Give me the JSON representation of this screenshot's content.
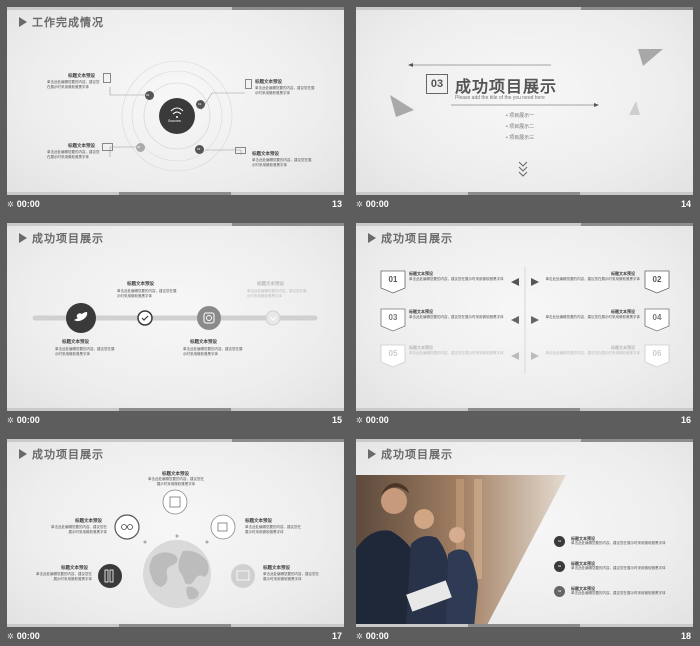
{
  "slides": [
    {
      "number": "13",
      "time": "00:00",
      "title": "工作完成情况",
      "center_label": "Sources",
      "items": [
        {
          "num": "02",
          "heading": "标题文本预设",
          "text": "单击此处编辑您要的内容，建议您在展示时采用微软雅黑字体"
        },
        {
          "num": "01",
          "heading": "标题文本预设",
          "text": "单击此处编辑您要的内容，建议您在展示时采用微软雅黑字体"
        },
        {
          "num": "04",
          "heading": "标题文本预设",
          "text": "单击此处编辑您要的内容，建议您在展示时采用微软雅黑字体"
        },
        {
          "num": "03",
          "heading": "标题文本预设",
          "text": "单击此处编辑您要的内容，建议您在展示时采用微软雅黑字体"
        }
      ]
    },
    {
      "number": "14",
      "time": "00:00",
      "section_num": "03",
      "title": "成功项目展示",
      "subtitle": "Please add the title of the you need here",
      "bullets": [
        "项目展示一",
        "项目展示二",
        "项目展示三"
      ]
    },
    {
      "number": "15",
      "time": "00:00",
      "title": "成功项目展示",
      "items": [
        {
          "heading": "标题文本预设",
          "text": "单击此处编辑您要的内容，建议您在展示时采用微软雅黑字体"
        },
        {
          "heading": "标题文本预设",
          "text": "单击此处编辑您要的内容，建议您在展示时采用微软雅黑字体"
        },
        {
          "heading": "标题文本预设",
          "text": "单击此处编辑您要的内容，建议您在展示时采用微软雅黑字体"
        },
        {
          "heading": "标题文本预设",
          "text": "单击此处编辑您要的内容，建议您在展示时采用微软雅黑字体"
        }
      ]
    },
    {
      "number": "16",
      "time": "00:00",
      "title": "成功项目展示",
      "items": [
        {
          "num": "01",
          "heading": "标题文本预设",
          "text": "单击此处编辑您要的内容，建议您在展示时采用微软雅黑字体"
        },
        {
          "num": "02",
          "heading": "标题文本预设",
          "text": "单击此处编辑您要的内容，建议您在展示时采用微软雅黑字体"
        },
        {
          "num": "03",
          "heading": "标题文本预设",
          "text": "单击此处编辑您要的内容，建议您在展示时采用微软雅黑字体"
        },
        {
          "num": "04",
          "heading": "标题文本预设",
          "text": "单击此处编辑您要的内容，建议您在展示时采用微软雅黑字体"
        },
        {
          "num": "05",
          "heading": "标题文本预设",
          "text": "单击此处编辑您要的内容，建议您在展示时采用微软雅黑字体"
        },
        {
          "num": "06",
          "heading": "标题文本预设",
          "text": "单击此处编辑您要的内容，建议您在展示时采用微软雅黑字体"
        }
      ]
    },
    {
      "number": "17",
      "time": "00:00",
      "title": "成功项目展示",
      "items": [
        {
          "heading": "标题文本预设",
          "text": "单击此处编辑您要的内容，建议您在展示时采用微软雅黑字体"
        },
        {
          "heading": "标题文本预设",
          "text": "单击此处编辑您要的内容，建议您在展示时采用微软雅黑字体"
        },
        {
          "heading": "标题文本预设",
          "text": "单击此处编辑您要的内容，建议您在展示时采用微软雅黑字体"
        },
        {
          "heading": "标题文本预设",
          "text": "单击此处编辑您要的内容，建议您在展示时采用微软雅黑字体"
        },
        {
          "heading": "标题文本预设",
          "text": "单击此处编辑您要的内容，建议您在展示时采用微软雅黑字体"
        }
      ]
    },
    {
      "number": "18",
      "time": "00:00",
      "title": "成功项目展示",
      "items": [
        {
          "num": "01",
          "heading": "标题文本预设",
          "text": "单击此处编辑您要的内容，建议您在展示时采用微软雅黑字体"
        },
        {
          "num": "02",
          "heading": "标题文本预设",
          "text": "单击此处编辑您要的内容，建议您在展示时采用微软雅黑字体"
        },
        {
          "num": "03",
          "heading": "标题文本预设",
          "text": "单击此处编辑您要的内容，建议您在展示时采用微软雅黑字体"
        }
      ]
    }
  ]
}
